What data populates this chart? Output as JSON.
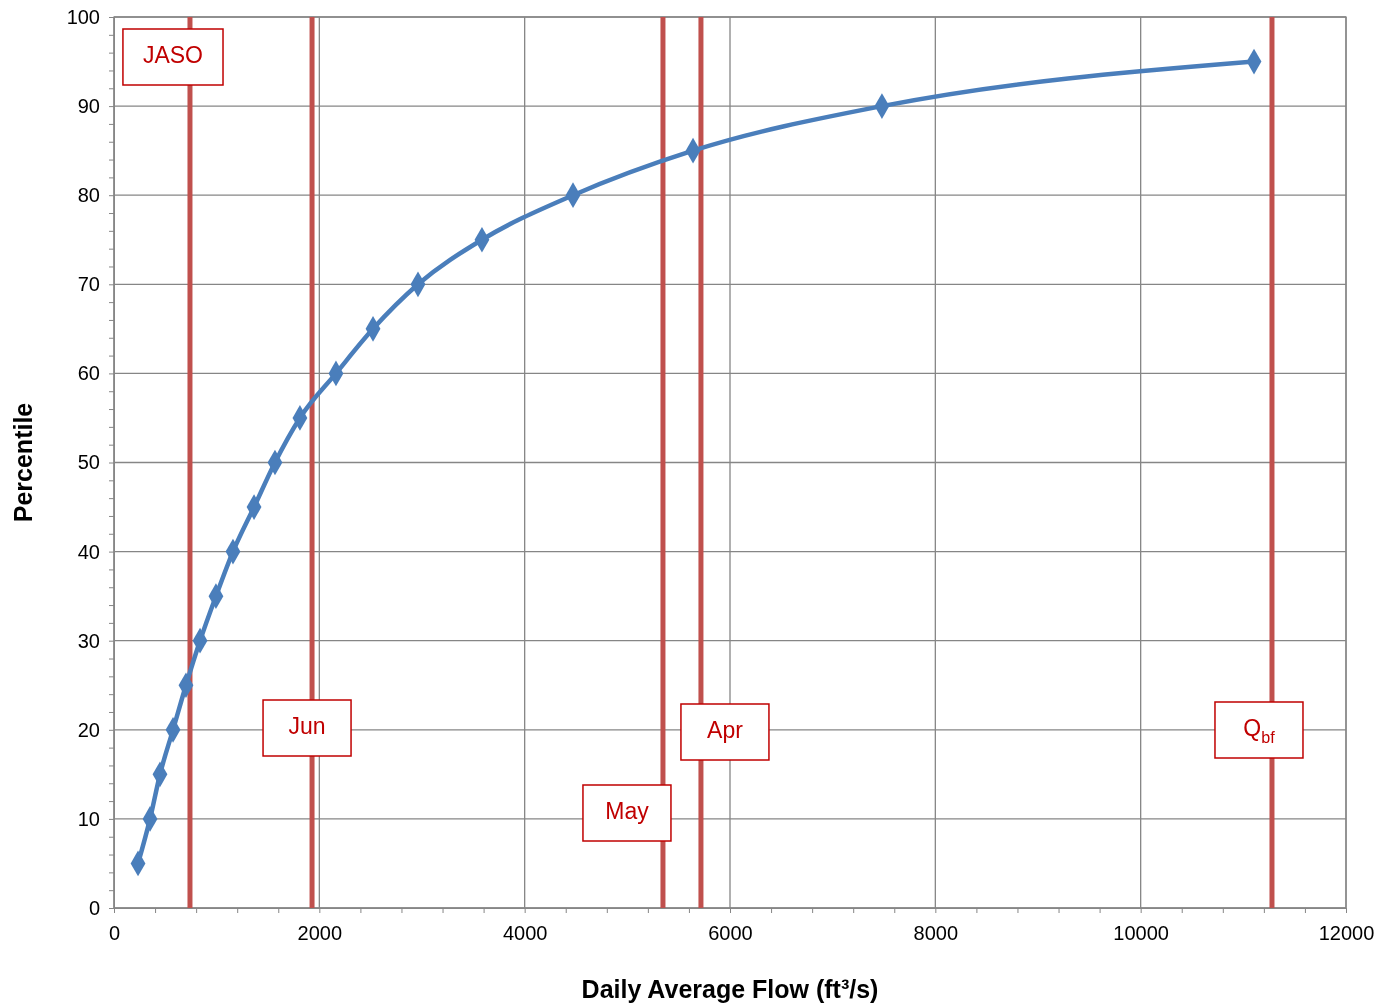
{
  "chart_data": {
    "type": "line",
    "xlabel": "Daily Average Flow (ft³/s)",
    "ylabel": "Percentile",
    "x": [
      234,
      351,
      448,
      575,
      701,
      838,
      993,
      1159,
      1364,
      1568,
      1811,
      2162,
      2523,
      2961,
      3584,
      4471,
      5640,
      7480,
      11104
    ],
    "series": [
      {
        "color": "#4a7ebb",
        "values": [
          5,
          10,
          15,
          20,
          25,
          30,
          35,
          40,
          45,
          50,
          55,
          60,
          65,
          70,
          75,
          80,
          85,
          90,
          95
        ]
      }
    ],
    "marker": "diamond",
    "line_style": "solid",
    "grid": true,
    "xlim": [
      0,
      12000
    ],
    "ylim": [
      0,
      100
    ],
    "xticks": [
      0,
      {
        "value": 400,
        "label": null
      },
      {
        "value": 800,
        "label": null
      },
      {
        "value": 1200,
        "label": null
      },
      {
        "value": 1600,
        "label": null
      },
      2000,
      {
        "value": 2400,
        "label": null
      },
      {
        "value": 2800,
        "label": null
      },
      {
        "value": 3200,
        "label": null
      },
      {
        "value": 3600,
        "label": null
      },
      4000,
      {
        "value": 4400,
        "label": null
      },
      {
        "value": 4800,
        "label": null
      },
      {
        "value": 5200,
        "label": null
      },
      {
        "value": 5600,
        "label": null
      },
      6000,
      {
        "value": 6400,
        "label": null
      },
      {
        "value": 6800,
        "label": null
      },
      {
        "value": 7200,
        "label": null
      },
      {
        "value": 7600,
        "label": null
      },
      8000,
      {
        "value": 8400,
        "label": null
      },
      {
        "value": 8800,
        "label": null
      },
      {
        "value": 9200,
        "label": null
      },
      {
        "value": 9600,
        "label": null
      },
      10000,
      {
        "value": 10400,
        "label": null
      },
      {
        "value": 10800,
        "label": null
      },
      {
        "value": 11200,
        "label": null
      },
      {
        "value": 11600,
        "label": null
      },
      12000
    ],
    "yticks": [
      0,
      {
        "value": 2,
        "label": null
      },
      {
        "value": 4,
        "label": null
      },
      {
        "value": 6,
        "label": null
      },
      {
        "value": 8,
        "label": null
      },
      10,
      {
        "value": 12,
        "label": null
      },
      {
        "value": 14,
        "label": null
      },
      {
        "value": 16,
        "label": null
      },
      {
        "value": 18,
        "label": null
      },
      20,
      {
        "value": 22,
        "label": null
      },
      {
        "value": 24,
        "label": null
      },
      {
        "value": 26,
        "label": null
      },
      {
        "value": 28,
        "label": null
      },
      30,
      {
        "value": 32,
        "label": null
      },
      {
        "value": 34,
        "label": null
      },
      {
        "value": 36,
        "label": null
      },
      {
        "value": 38,
        "label": null
      },
      40,
      {
        "value": 42,
        "label": null
      },
      {
        "value": 44,
        "label": null
      },
      {
        "value": 46,
        "label": null
      },
      {
        "value": 48,
        "label": null
      },
      50,
      {
        "value": 52,
        "label": null
      },
      {
        "value": 54,
        "label": null
      },
      {
        "value": 56,
        "label": null
      },
      {
        "value": 58,
        "label": null
      },
      60,
      {
        "value": 62,
        "label": null
      },
      {
        "value": 64,
        "label": null
      },
      {
        "value": 66,
        "label": null
      },
      {
        "value": 68,
        "label": null
      },
      70,
      {
        "value": 72,
        "label": null
      },
      {
        "value": 74,
        "label": null
      },
      {
        "value": 76,
        "label": null
      },
      {
        "value": 78,
        "label": null
      },
      80,
      {
        "value": 82,
        "label": null
      },
      {
        "value": 84,
        "label": null
      },
      {
        "value": 86,
        "label": null
      },
      {
        "value": 88,
        "label": null
      },
      90,
      {
        "value": 92,
        "label": null
      },
      {
        "value": 94,
        "label": null
      },
      {
        "value": 96,
        "label": null
      },
      {
        "value": 98,
        "label": null
      },
      100
    ],
    "ref_lines": [
      {
        "axis": "x",
        "value": 740,
        "color": "#c0504d",
        "label": "JASO"
      },
      {
        "axis": "x",
        "value": 1929,
        "color": "#c0504d",
        "label": "Jun"
      },
      {
        "axis": "x",
        "value": 5347,
        "color": "#c0504d",
        "label": "May"
      },
      {
        "axis": "x",
        "value": 5717,
        "color": "#c0504d",
        "label": "Apr"
      },
      {
        "axis": "x",
        "value": 11279,
        "color": "#c0504d",
        "label": "Q$_{bf}$"
      }
    ]
  }
}
